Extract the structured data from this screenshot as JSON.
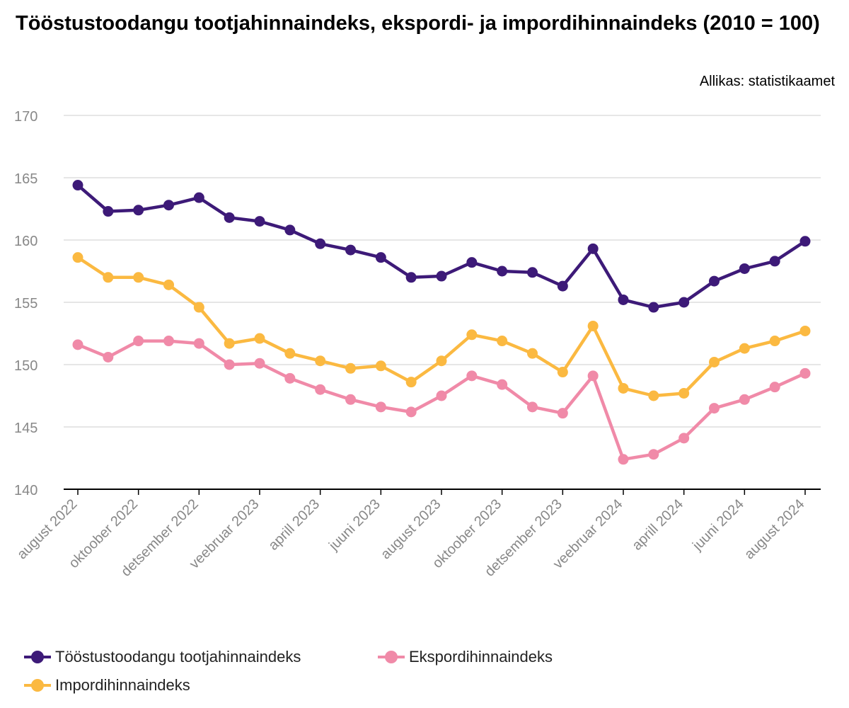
{
  "header": {
    "title": "Tööstustoodangu tootjahinnaindeks, ekspordi- ja impordihinnaindeks (2010 = 100)",
    "source": "Allikas: statistikaamet"
  },
  "chart_data": {
    "type": "line",
    "title": "Tööstustoodangu tootjahinnaindeks, ekspordi- ja impordihinnaindeks (2010 = 100)",
    "xlabel": "",
    "ylabel": "",
    "ylim": [
      140,
      170
    ],
    "yticks": [
      140,
      145,
      150,
      155,
      160,
      165,
      170
    ],
    "grid": true,
    "legend_position": "bottom",
    "x_tick_labels": [
      "august 2022",
      "oktoober 2022",
      "detsember 2022",
      "veebruar 2023",
      "aprill 2023",
      "juuni 2023",
      "august 2023",
      "oktoober 2023",
      "detsember 2023",
      "veebruar 2024",
      "aprill 2024",
      "juuni 2024",
      "august 2024"
    ],
    "categories": [
      "august 2022",
      "september 2022",
      "oktoober 2022",
      "november 2022",
      "detsember 2022",
      "jaanuar 2023",
      "veebruar 2023",
      "märts 2023",
      "aprill 2023",
      "mai 2023",
      "juuni 2023",
      "juuli 2023",
      "august 2023",
      "september 2023",
      "oktoober 2023",
      "november 2023",
      "detsember 2023",
      "jaanuar 2024",
      "veebruar 2024",
      "märts 2024",
      "aprill 2024",
      "mai 2024",
      "juuni 2024",
      "juuli 2024",
      "august 2024"
    ],
    "series": [
      {
        "name": "Tööstustoodangu tootjahinnaindeks",
        "color": "#3d1a78",
        "values": [
          164.4,
          162.3,
          162.4,
          162.8,
          163.4,
          161.8,
          161.5,
          160.8,
          159.7,
          159.2,
          158.6,
          157.0,
          157.1,
          158.2,
          157.5,
          157.4,
          156.3,
          159.3,
          155.2,
          154.6,
          155.0,
          156.7,
          157.7,
          158.3,
          159.9
        ]
      },
      {
        "name": "Ekspordihinnaindeks",
        "color": "#f08aa8",
        "values": [
          151.6,
          150.6,
          151.9,
          151.9,
          151.7,
          150.0,
          150.1,
          148.9,
          148.0,
          147.2,
          146.6,
          146.2,
          147.5,
          149.1,
          148.4,
          146.6,
          146.1,
          149.1,
          142.4,
          142.8,
          144.1,
          146.5,
          147.2,
          148.2,
          149.3
        ]
      },
      {
        "name": "Impordihinnaindeks",
        "color": "#fbb941",
        "values": [
          158.6,
          157.0,
          157.0,
          156.4,
          154.6,
          151.7,
          152.1,
          150.9,
          150.3,
          149.7,
          149.9,
          148.6,
          150.3,
          152.4,
          151.9,
          150.9,
          149.4,
          153.1,
          148.1,
          147.5,
          147.7,
          150.2,
          151.3,
          151.9,
          152.7
        ]
      }
    ]
  },
  "legend": [
    {
      "name": "Tööstustoodangu tootjahinnaindeks",
      "color": "#3d1a78"
    },
    {
      "name": "Ekspordihinnaindeks",
      "color": "#f08aa8"
    },
    {
      "name": "Impordihinnaindeks",
      "color": "#fbb941"
    }
  ]
}
